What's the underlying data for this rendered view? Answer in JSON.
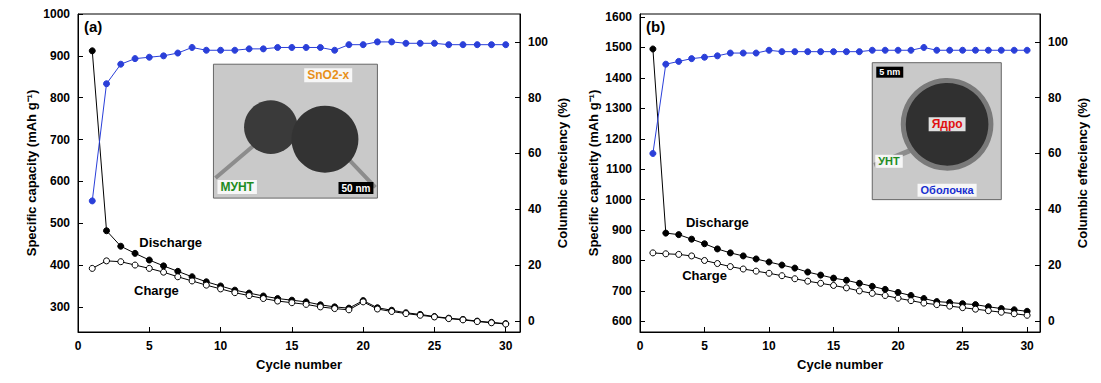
{
  "chart_data": [
    {
      "type": "line",
      "title": "(a)",
      "x": [
        1,
        2,
        3,
        4,
        5,
        6,
        7,
        8,
        9,
        10,
        11,
        12,
        13,
        14,
        15,
        16,
        17,
        18,
        19,
        20,
        21,
        22,
        23,
        24,
        25,
        26,
        27,
        28,
        29,
        30
      ],
      "xlim": [
        0,
        31
      ],
      "xticks": [
        0,
        5,
        10,
        15,
        20,
        25,
        30
      ],
      "xlabel": "Cycle number",
      "ylabel": "Specific capacity (mAh g⁻¹)",
      "ylim": [
        240,
        1000
      ],
      "yticks": [
        300,
        400,
        500,
        600,
        700,
        800,
        900,
        1000
      ],
      "y2label": "Columbic effeciency (%)",
      "y2lim": [
        -4,
        110
      ],
      "y2ticks": [
        0,
        20,
        40,
        60,
        80,
        100
      ],
      "grid": false,
      "series": [
        {
          "color": "#000000",
          "marker": "circle",
          "line_style": "solid",
          "values": [
            912,
            482,
            445,
            428,
            412,
            398,
            385,
            372,
            360,
            350,
            340,
            333,
            326,
            320,
            316,
            312,
            305,
            300,
            297,
            315,
            298,
            292,
            286,
            282,
            277,
            273,
            270,
            266,
            263,
            260
          ]
        },
        {
          "color": "#000000",
          "marker": "open_circle",
          "line_style": "solid",
          "values": [
            392,
            410,
            408,
            400,
            392,
            383,
            372,
            362,
            352,
            343,
            334,
            327,
            320,
            314,
            310,
            306,
            300,
            296,
            293,
            312,
            295,
            289,
            284,
            280,
            276,
            272,
            269,
            265,
            262,
            259
          ]
        },
        {
          "color": "#2a3fd9",
          "marker": "circle",
          "line_style": "solid",
          "axis": "y2",
          "values": [
            43,
            85,
            92,
            94,
            94.5,
            95,
            96,
            98,
            97,
            97,
            97,
            97.5,
            97.5,
            98,
            98,
            98,
            98,
            97,
            99,
            99,
            100,
            100,
            99.5,
            99.5,
            99.5,
            99,
            99,
            99,
            99,
            99
          ]
        }
      ],
      "annotations": [
        "Discharge",
        "Charge"
      ],
      "inset": {
        "labels": [
          {
            "text": "SnO2-x",
            "color": "#e8901a"
          },
          {
            "text": "МУНТ",
            "color": "#1e8c1e"
          }
        ],
        "scale_bar": "50 nm"
      }
    },
    {
      "type": "line",
      "title": "(b)",
      "x": [
        1,
        2,
        3,
        4,
        5,
        6,
        7,
        8,
        9,
        10,
        11,
        12,
        13,
        14,
        15,
        16,
        17,
        18,
        19,
        20,
        21,
        22,
        23,
        24,
        25,
        26,
        27,
        28,
        29,
        30
      ],
      "xlim": [
        0,
        31
      ],
      "xticks": [
        0,
        5,
        10,
        15,
        20,
        25,
        30
      ],
      "xlabel": "Cycle number",
      "ylabel": "Specific capacity (mAh g⁻¹)",
      "ylim": [
        565,
        1610
      ],
      "yticks": [
        600,
        700,
        800,
        900,
        1000,
        1100,
        1200,
        1300,
        1400,
        1500,
        1600
      ],
      "y2label": "Columbic effeciency (%)",
      "y2lim": [
        -4,
        110
      ],
      "y2ticks": [
        0,
        20,
        40,
        60,
        80,
        100
      ],
      "grid": false,
      "series": [
        {
          "color": "#000000",
          "marker": "circle",
          "line_style": "solid",
          "values": [
            1495,
            890,
            885,
            870,
            855,
            838,
            825,
            815,
            805,
            795,
            785,
            775,
            762,
            752,
            742,
            735,
            725,
            715,
            705,
            695,
            685,
            675,
            665,
            662,
            658,
            655,
            648,
            642,
            638,
            633
          ]
        },
        {
          "color": "#000000",
          "marker": "open_circle",
          "line_style": "solid",
          "values": [
            825,
            822,
            820,
            815,
            800,
            790,
            780,
            772,
            765,
            758,
            750,
            740,
            732,
            725,
            718,
            710,
            700,
            692,
            685,
            676,
            668,
            660,
            655,
            650,
            645,
            640,
            635,
            630,
            625,
            620
          ]
        },
        {
          "color": "#2a3fd9",
          "marker": "circle",
          "line_style": "solid",
          "axis": "y2",
          "values": [
            60,
            92,
            93,
            94,
            94.5,
            95,
            96,
            96,
            96,
            97,
            96.5,
            96.5,
            96.5,
            96.5,
            96.5,
            96.5,
            96.5,
            97,
            97,
            97,
            97,
            98,
            97,
            97,
            97,
            97,
            97,
            97,
            97,
            97
          ]
        }
      ],
      "annotations": [
        "Discharge",
        "Charge"
      ],
      "inset": {
        "labels": [
          {
            "text": "Ядро",
            "color": "#e01010"
          },
          {
            "text": "Оболочка",
            "color": "#1a2fd0"
          },
          {
            "text": "УНТ",
            "color": "#1e8c1e"
          }
        ],
        "scale_bar": "5 nm"
      }
    }
  ]
}
